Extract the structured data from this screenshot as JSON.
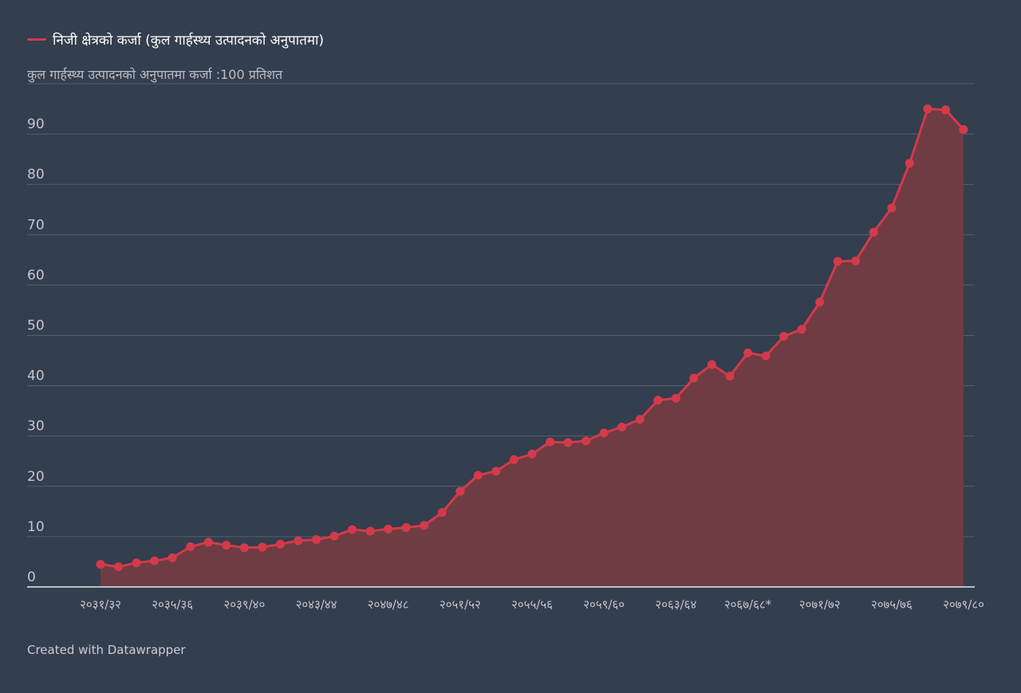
{
  "legend": {
    "label": "निजी क्षेत्रको कर्जा (कुल गार्हस्थ्य उत्पादनको अनुपातमा)"
  },
  "credit": "Created with Datawrapper",
  "colors": {
    "background": "#333e4e",
    "line": "#d33a4a",
    "area": "#6e3c42",
    "grid": "#56606e",
    "tick_text": "#c2c7cf"
  },
  "chart_data": {
    "type": "area",
    "title": "",
    "ylabel": "कुल गार्हस्थ्य उत्पादनको अनुपातमा कर्जा :100 प्रतिशत",
    "ylim": [
      0,
      100
    ],
    "yticks": [
      0,
      10,
      20,
      30,
      40,
      50,
      60,
      70,
      80,
      90
    ],
    "grid": true,
    "legend_position": "top-left",
    "xtick_labels": [
      "२०३१/३२",
      "२०३५/३६",
      "२०३९/४०",
      "२०४३/४४",
      "२०४७/४८",
      "२०५१/५२",
      "२०५५/५६",
      "२०५९/६०",
      "२०६३/६४",
      "२०६७/६८*",
      "२०७१/७२",
      "२०७५/७६",
      "२०७९/८०"
    ],
    "xtick_every": 4,
    "series": [
      {
        "name": "निजी क्षेत्रको कर्जा (कुल गार्हस्थ्य उत्पादनको अनुपातमा)",
        "values": [
          4.5,
          4.0,
          4.8,
          5.2,
          5.8,
          8.0,
          8.9,
          8.3,
          7.8,
          7.9,
          8.5,
          9.2,
          9.4,
          10.1,
          11.4,
          11.1,
          11.5,
          11.8,
          12.2,
          14.8,
          19.0,
          22.2,
          23.0,
          25.3,
          26.4,
          28.8,
          28.7,
          29.0,
          30.6,
          31.8,
          33.3,
          37.1,
          37.5,
          41.5,
          44.2,
          41.9,
          46.5,
          45.9,
          49.8,
          51.2,
          56.6,
          64.7,
          64.8,
          70.5,
          75.3,
          84.2,
          95.0,
          94.8,
          90.9
        ]
      }
    ]
  }
}
